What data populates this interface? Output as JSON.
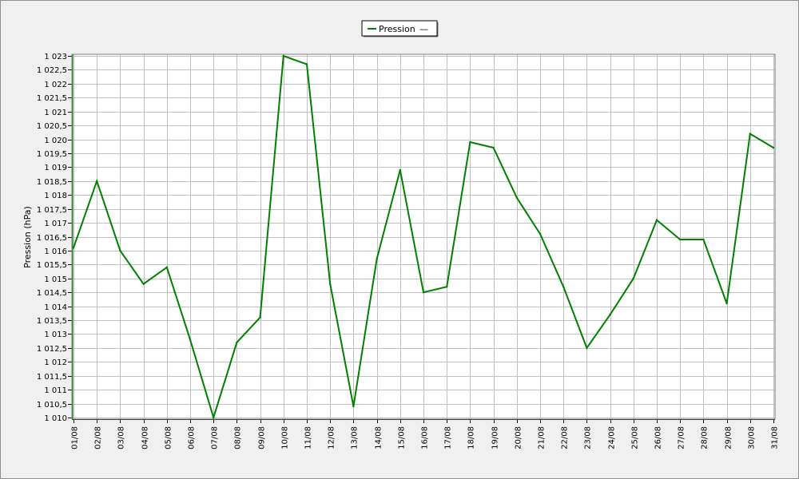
{
  "chart_data": {
    "type": "line",
    "title": "",
    "xlabel": "",
    "ylabel": "Pression (hPa)",
    "ylim": [
      1010,
      1023
    ],
    "y_ticks": [
      {
        "value": 1010,
        "label": "1 010"
      },
      {
        "value": 1010.5,
        "label": "1 010,5"
      },
      {
        "value": 1011,
        "label": "1 011"
      },
      {
        "value": 1011.5,
        "label": "1 011,5"
      },
      {
        "value": 1012,
        "label": "1 012"
      },
      {
        "value": 1012.5,
        "label": "1 012,5"
      },
      {
        "value": 1013,
        "label": "1 013"
      },
      {
        "value": 1013.5,
        "label": "1 013,5"
      },
      {
        "value": 1014,
        "label": "1 014"
      },
      {
        "value": 1014.5,
        "label": "1 014,5"
      },
      {
        "value": 1015,
        "label": "1 015"
      },
      {
        "value": 1015.5,
        "label": "1 015,5"
      },
      {
        "value": 1016,
        "label": "1 016"
      },
      {
        "value": 1016.5,
        "label": "1 016,5"
      },
      {
        "value": 1017,
        "label": "1 017"
      },
      {
        "value": 1017.5,
        "label": "1 017,5"
      },
      {
        "value": 1018,
        "label": "1 018"
      },
      {
        "value": 1018.5,
        "label": "1 018,5"
      },
      {
        "value": 1019,
        "label": "1 019"
      },
      {
        "value": 1019.5,
        "label": "1 019,5"
      },
      {
        "value": 1020,
        "label": "1 020"
      },
      {
        "value": 1020.5,
        "label": "1 020,5"
      },
      {
        "value": 1021,
        "label": "1 021"
      },
      {
        "value": 1021.5,
        "label": "1 021,5"
      },
      {
        "value": 1022,
        "label": "1 022"
      },
      {
        "value": 1022.5,
        "label": "1 022,5"
      },
      {
        "value": 1023,
        "label": "1 023"
      }
    ],
    "categories": [
      "01/08",
      "02/08",
      "03/08",
      "04/08",
      "05/08",
      "06/08",
      "07/08",
      "08/08",
      "09/08",
      "10/08",
      "11/08",
      "12/08",
      "13/08",
      "14/08",
      "15/08",
      "16/08",
      "17/08",
      "18/08",
      "19/08",
      "20/08",
      "21/08",
      "22/08",
      "23/08",
      "24/08",
      "25/08",
      "26/08",
      "27/08",
      "28/08",
      "29/08",
      "30/08",
      "31/08"
    ],
    "series": [
      {
        "name": "Pression",
        "color": "#008000",
        "values": [
          1016.1,
          1018.5,
          1016.0,
          1014.8,
          1015.4,
          1012.8,
          1010.0,
          1012.7,
          1013.6,
          1023.0,
          1022.7,
          1014.8,
          1010.4,
          1015.7,
          1018.9,
          1014.5,
          1014.7,
          1019.9,
          1019.7,
          1017.9,
          1016.6,
          1014.7,
          1012.5,
          1013.7,
          1015.0,
          1017.1,
          1016.4,
          1016.4,
          1014.1,
          1020.2,
          1019.7
        ]
      }
    ],
    "legend": {
      "position": "top-center",
      "entry_text": "Pression",
      "suffix_symbol": "—"
    },
    "grid": true,
    "colors": {
      "background": "#f0f0f0",
      "plot_background": "#ffffff",
      "grid": "#c0c0c0",
      "line": "#008000"
    }
  }
}
